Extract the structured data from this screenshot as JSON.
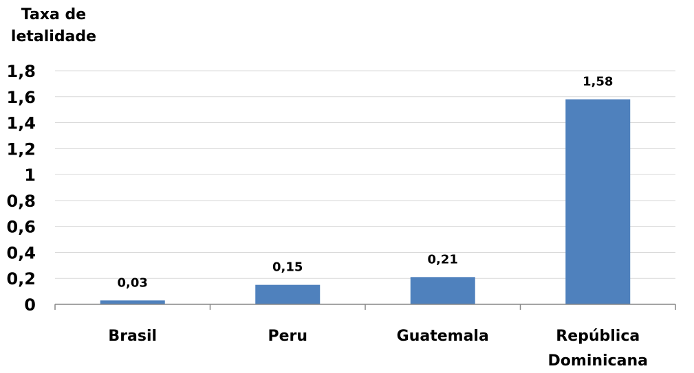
{
  "chart_data": {
    "type": "bar",
    "ylabel": [
      "Taxa de",
      "letalidade"
    ],
    "categories": [
      [
        "Brasil"
      ],
      [
        "Peru"
      ],
      [
        "Guatemala"
      ],
      [
        "República",
        "Dominicana"
      ]
    ],
    "values": [
      0.03,
      0.15,
      0.21,
      1.58
    ],
    "data_labels": [
      "0,03",
      "0,15",
      "0,21",
      "1,58"
    ],
    "ylim": [
      0,
      1.8
    ],
    "yticks": [
      0,
      0.2,
      0.4,
      0.6,
      0.8,
      1,
      1.2,
      1.4,
      1.6,
      1.8
    ],
    "ytick_labels": [
      "0",
      "0,2",
      "0,4",
      "0,6",
      "0,8",
      "1",
      "1,2",
      "1,4",
      "1,6",
      "1,8"
    ],
    "grid": true,
    "legend": "none",
    "colors": {
      "bar": "#4f81bd",
      "grid": "#d9d9d9",
      "axis": "#868686"
    }
  }
}
